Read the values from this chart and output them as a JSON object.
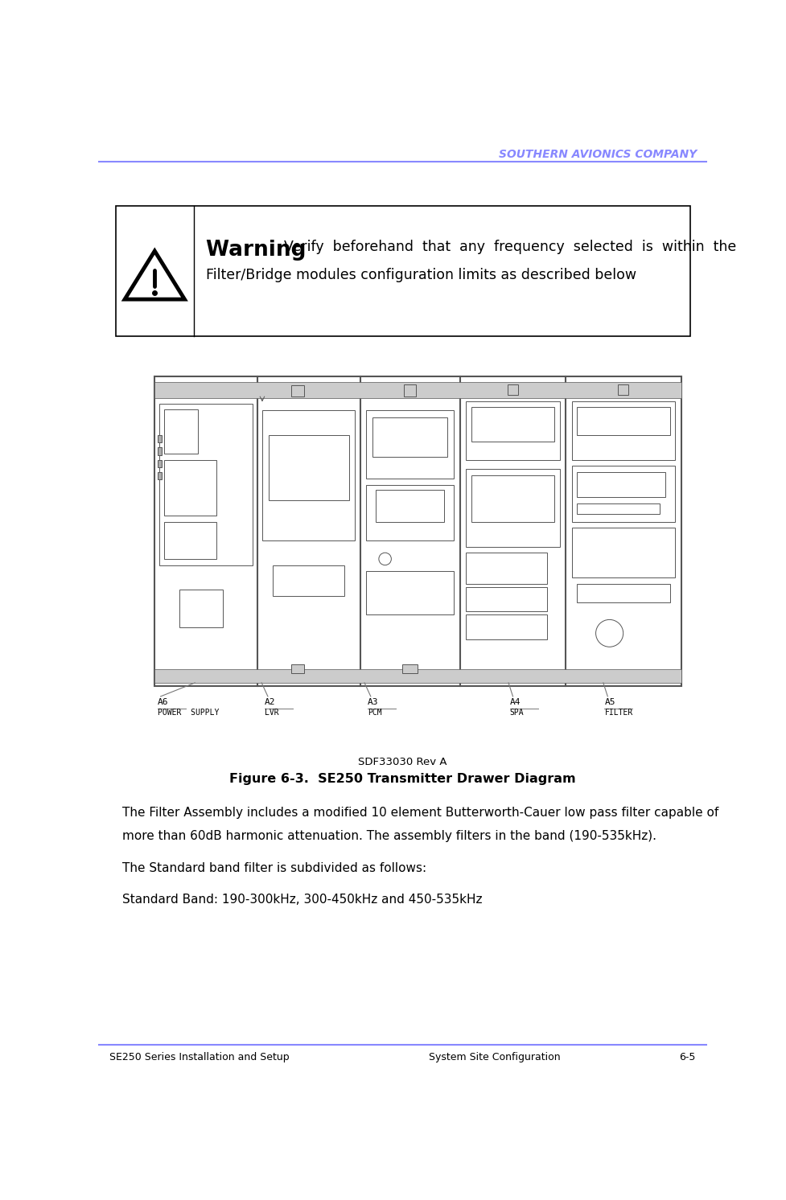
{
  "header_text": "SOUTHERN AVIONICS COMPANY",
  "header_color": "#8888ff",
  "header_line_color": "#8888ff",
  "footer_left": "SE250 Series Installation and Setup",
  "footer_center": "System Site Configuration",
  "footer_right": "6-5",
  "footer_line_color": "#8888ff",
  "warning_title": "Warning",
  "warn_line1": "Verify  beforehand  that  any  frequency  selected  is  within  the",
  "warn_line2": "Filter/Bridge modules configuration limits as described below",
  "para1_line1": "The Filter Assembly includes a modified 10 element Butterworth-Cauer low pass filter capable of",
  "para1_line2": "more than 60dB harmonic attenuation. The assembly filters in the band (190-535kHz).",
  "para2": "The Standard band filter is subdivided as follows:",
  "para3": "Standard Band: 190-300kHz, 300-450kHz and 450-535kHz",
  "fig_caption1": "SDF33030 Rev A",
  "fig_caption2": "Figure 6-3.  SE250 Transmitter Drawer Diagram",
  "label_a6": "A6",
  "label_a6_sub": "POWER  SUPPLY",
  "label_a2": "A2",
  "label_a2_sub": "LVR",
  "label_a3": "A3",
  "label_a3_sub": "PCM",
  "label_a4": "A4",
  "label_a4_sub": "SPA",
  "label_a5": "A5",
  "label_a5_sub": "FILTER",
  "bg_color": "#ffffff",
  "box_color": "#000000"
}
